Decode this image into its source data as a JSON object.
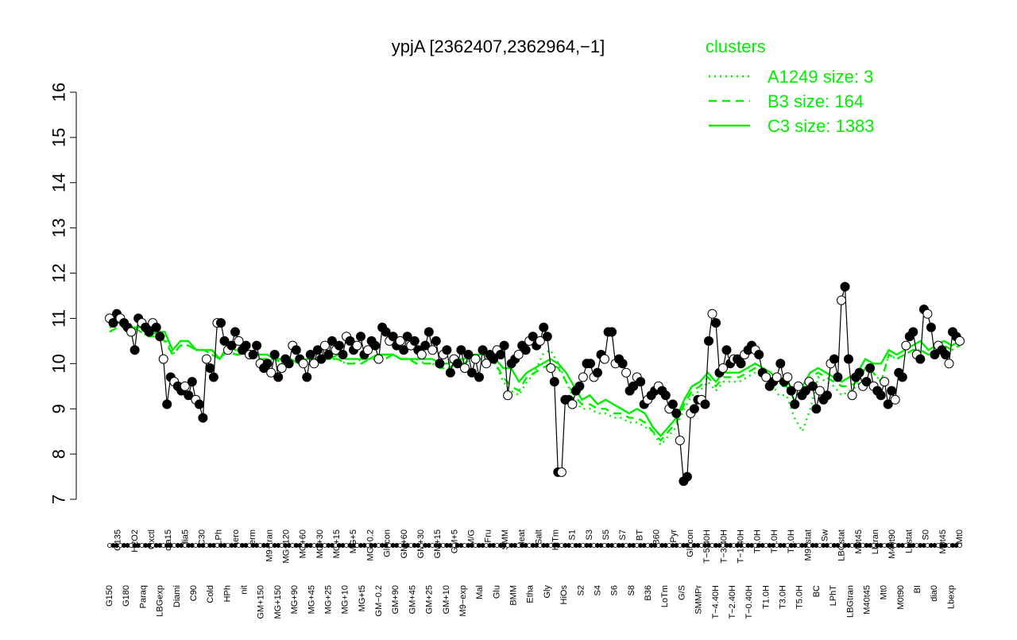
{
  "chart_data": {
    "type": "line",
    "title": "ypjA [2362407,2362964,−1]",
    "ylim": [
      7,
      16
    ],
    "yticks": [
      7,
      8,
      9,
      10,
      11,
      12,
      13,
      14,
      15,
      16
    ],
    "legend": {
      "title": "clusters",
      "placement": "top-right",
      "color": "#00ee00",
      "entries": [
        {
          "label": "A1249 size: 3",
          "style": "dotted"
        },
        {
          "label": "B3 size: 164",
          "style": "dashed"
        },
        {
          "label": "C3 size: 1383",
          "style": "solid"
        }
      ]
    },
    "x_tick_labels": [
      "G150",
      "G135",
      "G180",
      "H2O2",
      "Paraq",
      "Oxctl",
      "LBGexp",
      "dia15",
      "Diami",
      "dia5",
      "C90",
      "C30",
      "Cold",
      "LPh",
      "HPh",
      "aero",
      "nit",
      "ferm",
      "GM+150",
      "M9−tran",
      "MG+150",
      "MG+120",
      "MG+90",
      "MG+60",
      "MG+45",
      "MG+30",
      "MG+25",
      "MG+15",
      "MG+10",
      "MG+5",
      "MG+t5",
      "MG−0.2",
      "GM−0.2",
      "Glucon",
      "GM+90",
      "GM+60",
      "GM+45",
      "GM+30",
      "GM+25",
      "GM+15",
      "GM+10",
      "GM+5",
      "M9−exp",
      "M/G",
      "Mal",
      "Fru",
      "Glu",
      "SMM",
      "BMM",
      "Heat",
      "Etha",
      "Salt",
      "Gly",
      "HiTm",
      "HiOs",
      "S1",
      "S2",
      "S3",
      "S4",
      "S5",
      "S6",
      "S7",
      "S8",
      "BT",
      "B36",
      "B60",
      "LoTm",
      "Pyr",
      "G/S",
      "Glucon",
      "SMMPr",
      "T−5.40H",
      "T−4.40H",
      "T−3.40H",
      "T−2.40H",
      "T−1.40H",
      "T−0.40H",
      "T0.0H",
      "T1.0H",
      "T2.0H",
      "T3.0H",
      "T4.0H",
      "T5.0H",
      "M9−stat",
      "BC",
      "Sw",
      "LPhT",
      "LBGstat",
      "LBGtran",
      "M0t45",
      "M40t45",
      "Lbtran",
      "Mt0",
      "M40t90",
      "M0t90",
      "Lbstat",
      "BI",
      "S0",
      "dia0",
      "M0t45",
      "Lbexp",
      "Mt0"
    ],
    "series": [
      {
        "style": "points",
        "values": [
          11.0,
          10.9,
          11.1,
          11.0,
          10.9,
          10.8,
          10.7,
          10.3,
          11.0,
          10.9,
          10.8,
          10.7,
          10.9,
          10.8,
          10.6,
          10.1,
          9.1,
          9.7,
          9.6,
          9.5,
          9.4,
          9.5,
          9.3,
          9.6,
          9.2,
          9.1,
          8.8,
          10.1,
          9.9,
          9.7,
          10.9,
          10.9,
          10.5,
          10.3,
          10.4,
          10.7,
          10.5,
          10.3,
          10.4,
          10.2,
          10.2,
          10.4,
          10.0,
          9.9,
          10.0,
          9.8,
          10.2,
          9.7,
          9.9,
          10.1,
          10.0,
          10.4,
          10.3,
          10.1,
          10.0,
          9.7,
          10.2,
          10.0,
          10.3,
          10.1,
          10.4,
          10.2,
          10.5,
          10.3,
          10.4,
          10.2,
          10.6,
          10.5,
          10.3,
          10.4,
          10.6,
          10.2,
          10.3,
          10.5,
          10.4,
          10.1,
          10.8,
          10.7,
          10.5,
          10.6,
          10.4,
          10.5,
          10.3,
          10.6,
          10.4,
          10.5,
          10.3,
          10.2,
          10.4,
          10.7,
          10.3,
          10.5,
          10.0,
          10.2,
          10.3,
          9.8,
          10.1,
          10.0,
          10.3,
          9.9,
          10.2,
          9.8,
          10.1,
          9.7,
          10.3,
          10.0,
          10.2,
          10.1,
          10.3,
          10.2,
          10.4,
          9.3,
          10.0,
          10.1,
          10.2,
          10.4,
          10.3,
          10.5,
          10.6,
          10.4,
          10.5,
          10.8,
          10.6,
          9.9,
          9.6,
          7.6,
          7.6,
          9.2,
          9.2,
          9.1,
          9.4,
          9.5,
          9.7,
          10.0,
          10.0,
          9.7,
          9.8,
          10.2,
          10.1,
          10.7,
          10.7,
          10.0,
          10.1,
          10.0,
          9.8,
          9.4,
          9.5,
          9.7,
          9.6,
          9.1,
          9.2,
          9.3,
          9.4,
          9.5,
          9.4,
          9.3,
          9.0,
          9.1,
          8.9,
          8.3,
          7.4,
          7.5,
          8.9,
          9.0,
          9.2,
          9.2,
          9.1,
          10.5,
          11.1,
          10.9,
          9.8,
          9.9,
          10.3,
          10.0,
          10.1,
          10.1,
          10.0,
          10.2,
          10.3,
          10.4,
          10.3,
          10.2,
          9.8,
          9.7,
          9.5,
          9.6,
          9.7,
          10.0,
          9.6,
          9.7,
          9.4,
          9.1,
          9.5,
          9.3,
          9.4,
          9.6,
          9.5,
          9.0,
          9.4,
          9.2,
          9.3,
          10.0,
          10.1,
          9.7,
          11.4,
          11.7,
          10.1,
          9.3,
          9.7,
          9.8,
          9.5,
          9.6,
          9.9,
          9.5,
          9.4,
          9.3,
          9.6,
          9.1,
          9.4,
          9.2,
          9.8,
          9.7,
          10.4,
          10.6,
          10.7,
          10.2,
          10.1,
          11.2,
          11.1,
          10.8,
          10.2,
          10.4,
          10.3,
          10.2,
          10.0,
          10.7,
          10.6,
          10.5
        ]
      },
      {
        "name": "C3 size: 1383",
        "style": "solid",
        "values": [
          10.8,
          10.9,
          10.9,
          10.8,
          10.8,
          10.6,
          10.7,
          10.7,
          10.3,
          10.5,
          10.5,
          10.3,
          10.3,
          10.3,
          10.1,
          10.4,
          10.3,
          10.3,
          10.2,
          10.2,
          10.2,
          10.1,
          10.1,
          10.1,
          10.0,
          10.1,
          10.1,
          10.1,
          10.1,
          10.2,
          10.1,
          10.1,
          10.1,
          10.1,
          10.2,
          10.2,
          10.2,
          10.1,
          10.1,
          10.1,
          10.1,
          10.1,
          10.0,
          10.0,
          10.1,
          10.1,
          10.2,
          10.2,
          10.2,
          10.1,
          9.9,
          9.9,
          9.6,
          9.8,
          9.9,
          10.0,
          10.1,
          10.0,
          9.8,
          9.5,
          9.2,
          9.3,
          9.1,
          9.2,
          9.1,
          9.0,
          8.9,
          9.0,
          8.9,
          8.6,
          8.4,
          8.6,
          8.8,
          9.2,
          9.5,
          9.6,
          9.8,
          9.6,
          9.8,
          9.8,
          9.8,
          9.9,
          10.0,
          9.9,
          9.8,
          9.6,
          9.6,
          9.4,
          9.5,
          9.8,
          9.9,
          9.8,
          9.7,
          9.6,
          9.7,
          9.8,
          10.1,
          10.0,
          10.0,
          10.3,
          10.2,
          10.3,
          10.4,
          10.5,
          10.3,
          10.4,
          10.5,
          10.4,
          10.5
        ]
      },
      {
        "name": "B3 size: 164",
        "style": "dashed",
        "values": [
          10.7,
          10.8,
          10.8,
          10.8,
          10.7,
          10.6,
          10.6,
          10.5,
          10.2,
          10.4,
          10.4,
          10.3,
          10.3,
          10.2,
          10.1,
          10.3,
          10.2,
          10.2,
          10.2,
          10.1,
          10.1,
          10.1,
          10.0,
          10.1,
          10.0,
          10.0,
          10.0,
          10.1,
          10.1,
          10.1,
          10.0,
          10.0,
          10.0,
          10.1,
          10.1,
          10.1,
          10.2,
          10.1,
          10.1,
          10.0,
          10.0,
          10.0,
          9.9,
          9.9,
          10.0,
          10.0,
          10.1,
          10.1,
          10.1,
          10.0,
          9.7,
          9.5,
          9.4,
          9.7,
          9.8,
          9.9,
          10.0,
          9.9,
          9.6,
          9.3,
          9.1,
          9.1,
          9.0,
          9.0,
          8.9,
          8.9,
          8.8,
          8.8,
          8.7,
          8.5,
          8.3,
          8.5,
          8.7,
          9.1,
          9.4,
          9.5,
          9.7,
          9.5,
          9.7,
          9.7,
          9.7,
          9.8,
          9.9,
          9.8,
          9.7,
          9.5,
          9.5,
          9.2,
          9.4,
          9.7,
          9.8,
          9.7,
          9.6,
          9.5,
          9.5,
          9.6,
          9.9,
          9.8,
          9.6,
          10.2,
          10.1,
          10.2,
          10.3,
          10.3,
          10.2,
          10.3,
          10.4,
          10.3,
          10.4
        ]
      },
      {
        "name": "A1249 size: 3",
        "style": "dotted",
        "values": [
          10.8,
          10.9,
          10.8,
          10.8,
          10.7,
          10.6,
          10.7,
          10.6,
          10.2,
          10.4,
          10.4,
          10.3,
          10.3,
          10.2,
          10.1,
          10.3,
          10.2,
          10.2,
          10.2,
          10.1,
          10.1,
          10.1,
          10.0,
          10.1,
          10.0,
          10.0,
          10.1,
          10.1,
          10.1,
          10.1,
          10.0,
          10.0,
          10.1,
          10.1,
          10.2,
          10.2,
          10.2,
          10.1,
          10.1,
          10.1,
          10.0,
          10.0,
          9.9,
          9.9,
          10.0,
          10.1,
          10.1,
          10.1,
          10.1,
          10.0,
          9.6,
          9.4,
          9.3,
          9.6,
          9.8,
          10.2,
          10.3,
          10.0,
          9.6,
          9.2,
          9.0,
          9.0,
          8.9,
          8.9,
          8.8,
          8.8,
          8.7,
          8.7,
          8.6,
          8.5,
          8.2,
          8.4,
          8.6,
          9.0,
          9.3,
          9.4,
          9.6,
          9.4,
          9.6,
          9.6,
          9.6,
          9.7,
          9.8,
          9.7,
          9.6,
          9.3,
          9.3,
          8.8,
          8.5,
          9.0,
          9.7,
          9.6,
          9.5,
          9.3,
          9.4,
          9.5,
          9.9,
          9.8,
          9.6,
          10.2,
          10.1,
          10.2,
          10.3,
          10.3,
          10.2,
          10.3,
          10.4,
          10.3,
          10.4
        ]
      }
    ]
  }
}
